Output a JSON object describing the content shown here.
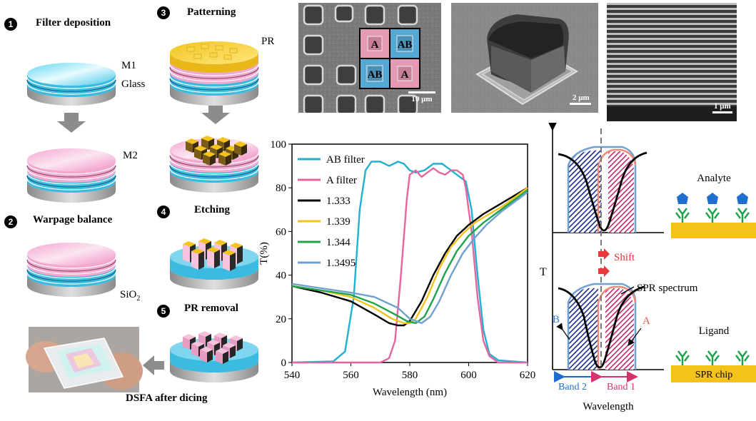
{
  "steps": {
    "s1": {
      "num": "1",
      "title": "Filter deposition"
    },
    "s2": {
      "num": "2",
      "title": "Warpage balance"
    },
    "s3": {
      "num": "3",
      "title": "Patterning"
    },
    "s4": {
      "num": "4",
      "title": "Etching"
    },
    "s5": {
      "num": "5",
      "title": "PR removal"
    },
    "final": "DSFA after dicing"
  },
  "layer_labels": {
    "m1": "M1",
    "glass": "Glass",
    "m2": "M2",
    "sio2": "SiO",
    "sio2_sub": "2",
    "pr": "PR"
  },
  "sem": {
    "scale1": "10 μm",
    "scale2": "2 μm",
    "scale3": "1 μm",
    "cells": [
      "A",
      "AB",
      "AB",
      "A"
    ]
  },
  "chart_data": {
    "type": "line",
    "xlabel": "Wavelength (nm)",
    "ylabel": "T(%)",
    "xlim": [
      540,
      620
    ],
    "ylim": [
      0,
      100
    ],
    "xticks": [
      540,
      560,
      580,
      600,
      620
    ],
    "yticks": [
      0,
      20,
      40,
      60,
      80,
      100
    ],
    "legend_position": "top-left",
    "series": [
      {
        "name": "AB filter",
        "color": "#1fb0d2",
        "points": [
          [
            540,
            0
          ],
          [
            554,
            0.5
          ],
          [
            558,
            5
          ],
          [
            561,
            30
          ],
          [
            563,
            70
          ],
          [
            565,
            88
          ],
          [
            567,
            92
          ],
          [
            570,
            92
          ],
          [
            573,
            90
          ],
          [
            576,
            92
          ],
          [
            578,
            91
          ],
          [
            580,
            88
          ],
          [
            582,
            87
          ],
          [
            585,
            88
          ],
          [
            588,
            91
          ],
          [
            591,
            91
          ],
          [
            594,
            88
          ],
          [
            597,
            85
          ],
          [
            599,
            83
          ],
          [
            601,
            70
          ],
          [
            603,
            40
          ],
          [
            605,
            15
          ],
          [
            607,
            4
          ],
          [
            610,
            1
          ],
          [
            620,
            0
          ]
        ]
      },
      {
        "name": "A filter",
        "color": "#e8649c",
        "points": [
          [
            540,
            0
          ],
          [
            570,
            0
          ],
          [
            573,
            2
          ],
          [
            575,
            10
          ],
          [
            577,
            40
          ],
          [
            579,
            75
          ],
          [
            580,
            86
          ],
          [
            582,
            88
          ],
          [
            584,
            85
          ],
          [
            586,
            87
          ],
          [
            588,
            89
          ],
          [
            590,
            87
          ],
          [
            592,
            86
          ],
          [
            594,
            88
          ],
          [
            596,
            88
          ],
          [
            598,
            86
          ],
          [
            599,
            80
          ],
          [
            601,
            60
          ],
          [
            603,
            30
          ],
          [
            605,
            10
          ],
          [
            607,
            3
          ],
          [
            610,
            0
          ],
          [
            620,
            0
          ]
        ]
      },
      {
        "name": "1.333",
        "color": "#000000",
        "points": [
          [
            540,
            35
          ],
          [
            550,
            32
          ],
          [
            560,
            28
          ],
          [
            568,
            22
          ],
          [
            573,
            18
          ],
          [
            576,
            17
          ],
          [
            578,
            17
          ],
          [
            580,
            19
          ],
          [
            584,
            28
          ],
          [
            588,
            40
          ],
          [
            592,
            50
          ],
          [
            596,
            58
          ],
          [
            600,
            63
          ],
          [
            605,
            68
          ],
          [
            610,
            72
          ],
          [
            615,
            76
          ],
          [
            620,
            80
          ]
        ]
      },
      {
        "name": "1.339",
        "color": "#f2c21a",
        "points": [
          [
            540,
            35
          ],
          [
            550,
            33
          ],
          [
            560,
            30
          ],
          [
            568,
            25
          ],
          [
            574,
            20
          ],
          [
            578,
            18
          ],
          [
            580,
            18
          ],
          [
            582,
            20
          ],
          [
            586,
            30
          ],
          [
            590,
            43
          ],
          [
            594,
            53
          ],
          [
            598,
            59
          ],
          [
            602,
            64
          ],
          [
            607,
            68
          ],
          [
            612,
            72
          ],
          [
            616,
            76
          ],
          [
            620,
            80
          ]
        ]
      },
      {
        "name": "1.344",
        "color": "#1fa34a",
        "points": [
          [
            540,
            35
          ],
          [
            550,
            33
          ],
          [
            560,
            31
          ],
          [
            568,
            27
          ],
          [
            575,
            22
          ],
          [
            579,
            19
          ],
          [
            582,
            18
          ],
          [
            585,
            21
          ],
          [
            588,
            29
          ],
          [
            592,
            41
          ],
          [
            596,
            51
          ],
          [
            600,
            58
          ],
          [
            605,
            64
          ],
          [
            610,
            69
          ],
          [
            615,
            74
          ],
          [
            620,
            79
          ]
        ]
      },
      {
        "name": "1.3495",
        "color": "#6fa0cf",
        "points": [
          [
            540,
            36
          ],
          [
            550,
            34
          ],
          [
            560,
            32
          ],
          [
            568,
            30
          ],
          [
            576,
            25
          ],
          [
            580,
            20
          ],
          [
            584,
            18
          ],
          [
            587,
            21
          ],
          [
            590,
            28
          ],
          [
            594,
            40
          ],
          [
            598,
            50
          ],
          [
            602,
            57
          ],
          [
            606,
            63
          ],
          [
            611,
            69
          ],
          [
            616,
            74
          ],
          [
            620,
            78
          ]
        ]
      }
    ]
  },
  "spr": {
    "t": "T",
    "wavelength": "Wavelength",
    "shift": "Shift",
    "spr_spectrum": "SPR spectrum",
    "b": "B",
    "a": "A",
    "band2": "Band 2",
    "band1": "Band 1",
    "analyte": "Analyte",
    "ligand": "Ligand",
    "chip": "SPR chip"
  }
}
